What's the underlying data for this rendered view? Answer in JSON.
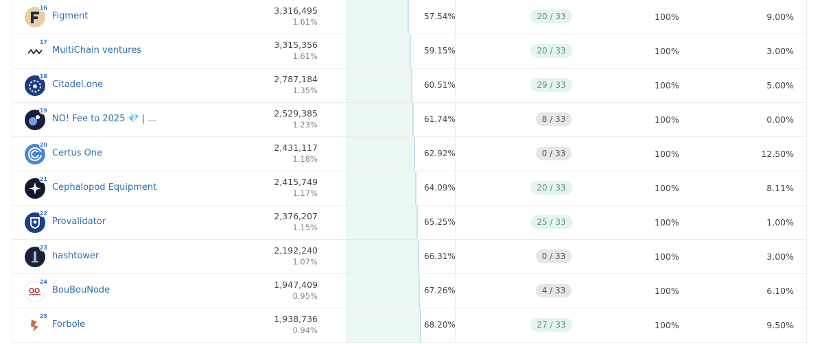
{
  "colors": {
    "link": "#2f6db5",
    "accent_bar": "#eaf7f2",
    "gov_green_bg": "#e3f4ef",
    "gov_grey_bg": "#e6e6e6"
  },
  "validators": [
    {
      "rank": "16",
      "name": "Figment",
      "icon": "figment-logo-icon",
      "voting_power": "3,316,495",
      "voting_share": "1.61%",
      "cumulative": "57.54%",
      "cumulative_value": 57.54,
      "governance": "20 / 33",
      "gov_style": "green",
      "uptime": "100%",
      "commission": "9.00%"
    },
    {
      "rank": "17",
      "name": "MultiChain ventures",
      "icon": "multichain-logo-icon",
      "voting_power": "3,315,356",
      "voting_share": "1.61%",
      "cumulative": "59.15%",
      "cumulative_value": 59.15,
      "governance": "20 / 33",
      "gov_style": "green",
      "uptime": "100%",
      "commission": "3.00%"
    },
    {
      "rank": "18",
      "name": "Citadel.one",
      "icon": "citadel-logo-icon",
      "voting_power": "2,787,184",
      "voting_share": "1.35%",
      "cumulative": "60.51%",
      "cumulative_value": 60.51,
      "governance": "29 / 33",
      "gov_style": "green",
      "uptime": "100%",
      "commission": "5.00%"
    },
    {
      "rank": "19",
      "name": "NO! Fee to 2025 💎 | ...",
      "icon": "nofee-logo-icon",
      "voting_power": "2,529,385",
      "voting_share": "1.23%",
      "cumulative": "61.74%",
      "cumulative_value": 61.74,
      "governance": "8 / 33",
      "gov_style": "grey",
      "uptime": "100%",
      "commission": "0.00%"
    },
    {
      "rank": "20",
      "name": "Certus One",
      "icon": "certus-logo-icon",
      "voting_power": "2,431,117",
      "voting_share": "1.18%",
      "cumulative": "62.92%",
      "cumulative_value": 62.92,
      "governance": "0 / 33",
      "gov_style": "grey",
      "uptime": "100%",
      "commission": "12.50%"
    },
    {
      "rank": "21",
      "name": "Cephalopod Equipment",
      "icon": "cephalopod-logo-icon",
      "voting_power": "2,415,749",
      "voting_share": "1.17%",
      "cumulative": "64.09%",
      "cumulative_value": 64.09,
      "governance": "20 / 33",
      "gov_style": "green",
      "uptime": "100%",
      "commission": "8.11%"
    },
    {
      "rank": "22",
      "name": "Provalidator",
      "icon": "provalidator-logo-icon",
      "voting_power": "2,376,207",
      "voting_share": "1.15%",
      "cumulative": "65.25%",
      "cumulative_value": 65.25,
      "governance": "25 / 33",
      "gov_style": "green",
      "uptime": "100%",
      "commission": "1.00%"
    },
    {
      "rank": "23",
      "name": "hashtower",
      "icon": "hashtower-logo-icon",
      "voting_power": "2,192,240",
      "voting_share": "1.07%",
      "cumulative": "66.31%",
      "cumulative_value": 66.31,
      "governance": "0 / 33",
      "gov_style": "grey",
      "uptime": "100%",
      "commission": "3.00%"
    },
    {
      "rank": "24",
      "name": "BouBouNode",
      "icon": "boubounode-logo-icon",
      "voting_power": "1,947,409",
      "voting_share": "0.95%",
      "cumulative": "67.26%",
      "cumulative_value": 67.26,
      "governance": "4 / 33",
      "gov_style": "grey",
      "uptime": "100%",
      "commission": "6.10%"
    },
    {
      "rank": "25",
      "name": "Forbole",
      "icon": "forbole-logo-icon",
      "voting_power": "1,938,736",
      "voting_share": "0.94%",
      "cumulative": "68.20%",
      "cumulative_value": 68.2,
      "governance": "27 / 33",
      "gov_style": "green",
      "uptime": "100%",
      "commission": "9.50%"
    }
  ]
}
